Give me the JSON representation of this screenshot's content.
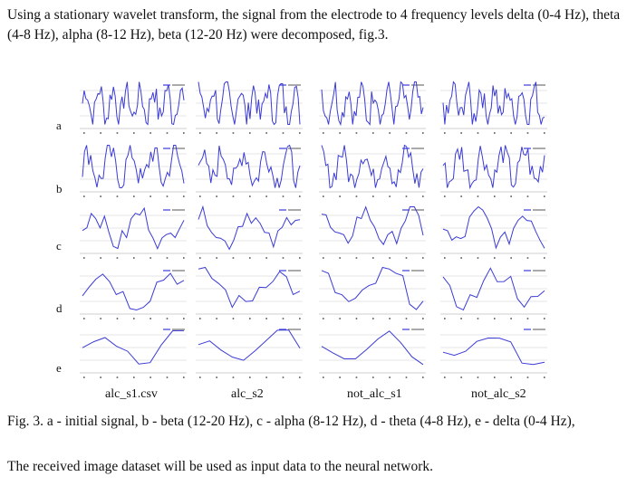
{
  "intro": "Using a stationary wavelet transform, the signal from the electrode to 4 frequency levels delta (0-4 Hz), theta (4-8 Hz), alpha (8-12 Hz), beta (12-20 Hz) were decomposed, fig.3.",
  "rows": [
    "a",
    "b",
    "c",
    "d",
    "e"
  ],
  "columns": [
    "alc_s1.csv",
    "alc_s2",
    "not_alc_s1",
    "not_alc_s2"
  ],
  "caption": "Fig. 3. a - initial signal, b - beta (12-20 Hz), c - alpha (8-12 Hz), d - theta (4-8 Hz), e - delta (0-4 Hz),",
  "outro": "The received image dataset will be used as input data to the neural network.",
  "line_color": "#3b3bd6",
  "chart_data": {
    "type": "line",
    "rows": [
      {
        "row": "a",
        "n": 60
      },
      {
        "row": "b",
        "n": 50
      },
      {
        "row": "c",
        "n": 24
      },
      {
        "row": "d",
        "n": 16
      },
      {
        "row": "e",
        "n": 10
      }
    ]
  }
}
